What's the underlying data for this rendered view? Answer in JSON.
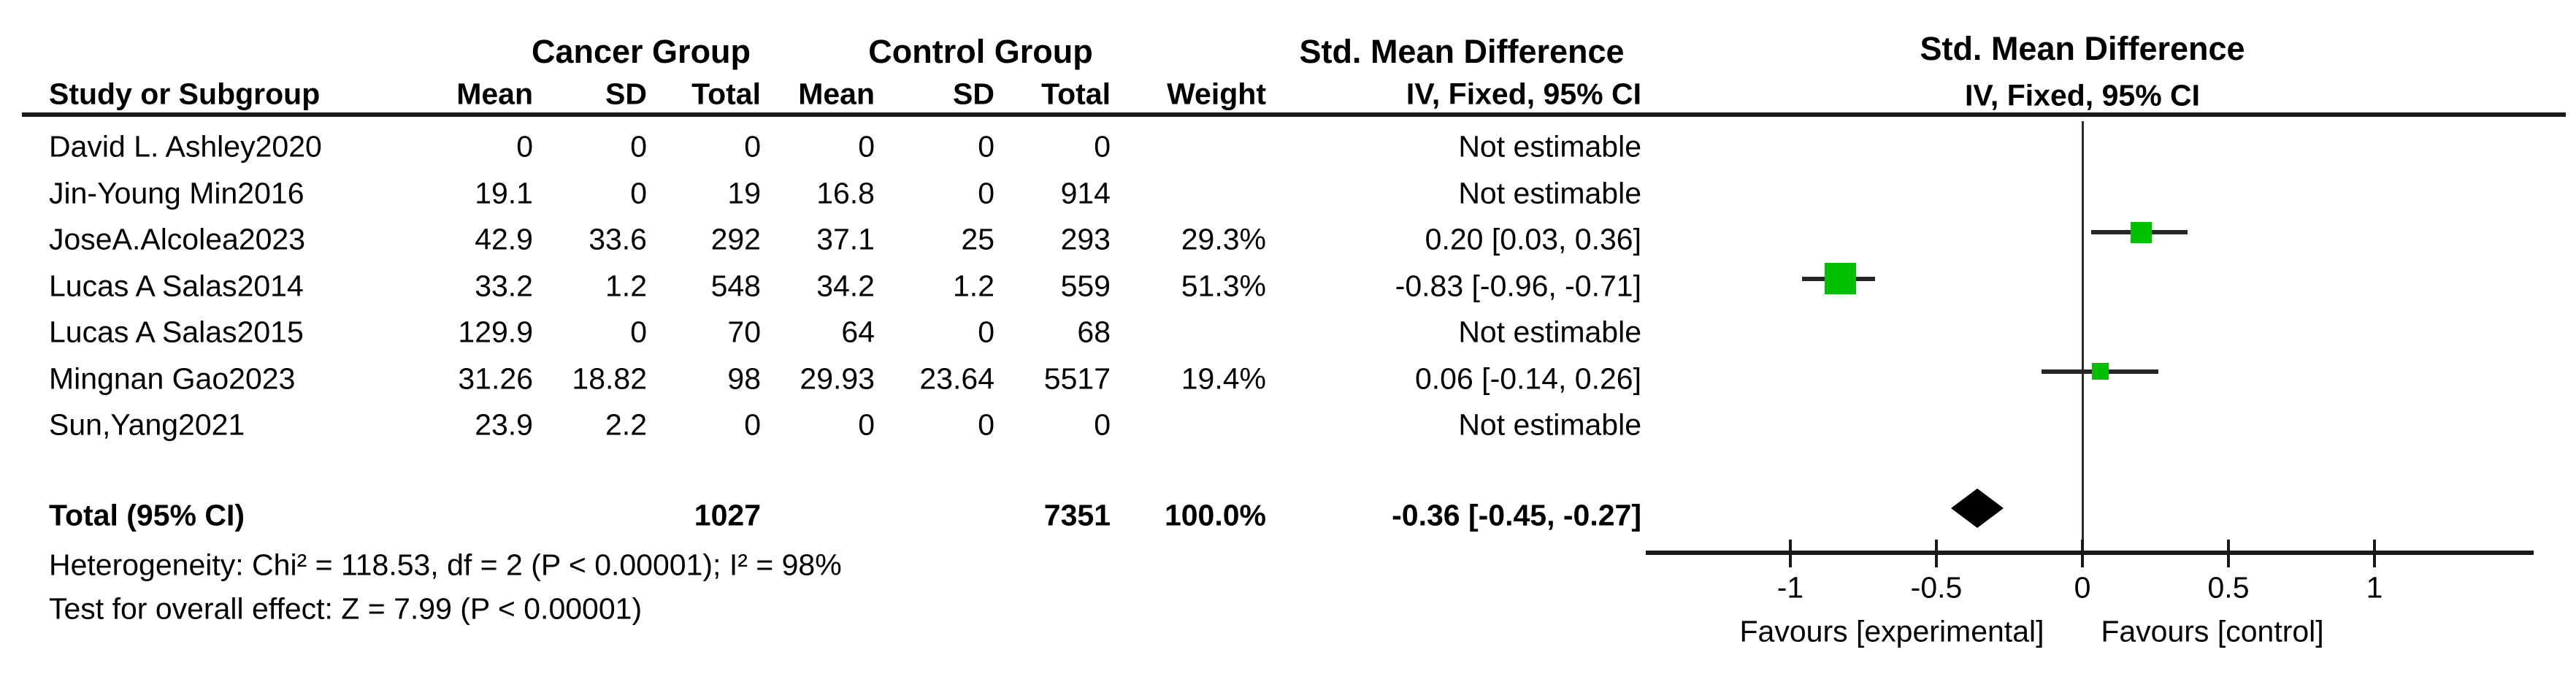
{
  "figure": {
    "group1_header": "Cancer Group",
    "group2_header": "Control Group",
    "effect_header": "Std. Mean Difference",
    "plot_header_line1": "Std. Mean Difference",
    "plot_header_line2": "IV, Fixed, 95% CI",
    "columns": {
      "study": "Study or Subgroup",
      "mean": "Mean",
      "sd": "SD",
      "total": "Total",
      "mean2": "Mean",
      "sd2": "SD",
      "total2": "Total",
      "weight": "Weight",
      "method": "IV, Fixed, 95% CI"
    },
    "rows": [
      {
        "study": "David L. Ashley2020",
        "mean1": "0",
        "sd1": "0",
        "total1": "0",
        "mean2": "0",
        "sd2": "0",
        "total2": "0",
        "weight": "",
        "ci": "Not estimable"
      },
      {
        "study": "Jin-Young Min2016",
        "mean1": "19.1",
        "sd1": "0",
        "total1": "19",
        "mean2": "16.8",
        "sd2": "0",
        "total2": "914",
        "weight": "",
        "ci": "Not estimable"
      },
      {
        "study": "JoseA.Alcolea2023",
        "mean1": "42.9",
        "sd1": "33.6",
        "total1": "292",
        "mean2": "37.1",
        "sd2": "25",
        "total2": "293",
        "weight": "29.3%",
        "ci": "0.20 [0.03, 0.36]"
      },
      {
        "study": "Lucas A Salas2014",
        "mean1": "33.2",
        "sd1": "1.2",
        "total1": "548",
        "mean2": "34.2",
        "sd2": "1.2",
        "total2": "559",
        "weight": "51.3%",
        "ci": "-0.83 [-0.96, -0.71]"
      },
      {
        "study": "Lucas A Salas2015",
        "mean1": "129.9",
        "sd1": "0",
        "total1": "70",
        "mean2": "64",
        "sd2": "0",
        "total2": "68",
        "weight": "",
        "ci": "Not estimable"
      },
      {
        "study": "Mingnan Gao2023",
        "mean1": "31.26",
        "sd1": "18.82",
        "total1": "98",
        "mean2": "29.93",
        "sd2": "23.64",
        "total2": "5517",
        "weight": "19.4%",
        "ci": "0.06 [-0.14, 0.26]"
      },
      {
        "study": "Sun,Yang2021",
        "mean1": "23.9",
        "sd1": "2.2",
        "total1": "0",
        "mean2": "0",
        "sd2": "0",
        "total2": "0",
        "weight": "",
        "ci": "Not estimable"
      }
    ],
    "total_row": {
      "label": "Total (95% CI)",
      "total1": "1027",
      "total2": "7351",
      "weight": "100.0%",
      "ci": "-0.36 [-0.45, -0.27]"
    },
    "heterogeneity": "Heterogeneity: Chi² = 118.53, df = 2 (P < 0.00001); I² = 98%",
    "overall_effect": "Test for overall effect: Z = 7.99 (P < 0.00001)",
    "favours_left": "Favours [experimental]",
    "favours_right": "Favours [control]"
  },
  "chart_data": {
    "type": "scatter",
    "subtype": "forest-plot-meta-analysis",
    "effect_measure": "Std. Mean Difference (IV, Fixed, 95% CI)",
    "grid": false,
    "legend_position": "none",
    "x_axis": {
      "range": [
        -1.5,
        1.55
      ],
      "ticks": [
        -1,
        -0.5,
        0,
        0.5,
        1
      ],
      "tick_labels": [
        "-1",
        "-0.5",
        "0",
        "0.5",
        "1"
      ],
      "label_left": "Favours [experimental]",
      "label_right": "Favours [control]"
    },
    "studies": [
      {
        "name": "David L. Ashley2020",
        "cancer": {
          "mean": 0,
          "sd": 0,
          "total": 0
        },
        "control": {
          "mean": 0,
          "sd": 0,
          "total": 0
        },
        "weight_pct": null,
        "smd": null,
        "ci": null,
        "estimable": false
      },
      {
        "name": "Jin-Young Min2016",
        "cancer": {
          "mean": 19.1,
          "sd": 0,
          "total": 19
        },
        "control": {
          "mean": 16.8,
          "sd": 0,
          "total": 914
        },
        "weight_pct": null,
        "smd": null,
        "ci": null,
        "estimable": false
      },
      {
        "name": "JoseA.Alcolea2023",
        "cancer": {
          "mean": 42.9,
          "sd": 33.6,
          "total": 292
        },
        "control": {
          "mean": 37.1,
          "sd": 25,
          "total": 293
        },
        "weight_pct": 29.3,
        "smd": 0.2,
        "ci": [
          0.03,
          0.36
        ],
        "estimable": true
      },
      {
        "name": "Lucas A Salas2014",
        "cancer": {
          "mean": 33.2,
          "sd": 1.2,
          "total": 548
        },
        "control": {
          "mean": 34.2,
          "sd": 1.2,
          "total": 559
        },
        "weight_pct": 51.3,
        "smd": -0.83,
        "ci": [
          -0.96,
          -0.71
        ],
        "estimable": true
      },
      {
        "name": "Lucas A Salas2015",
        "cancer": {
          "mean": 129.9,
          "sd": 0,
          "total": 70
        },
        "control": {
          "mean": 64,
          "sd": 0,
          "total": 68
        },
        "weight_pct": null,
        "smd": null,
        "ci": null,
        "estimable": false
      },
      {
        "name": "Mingnan Gao2023",
        "cancer": {
          "mean": 31.26,
          "sd": 18.82,
          "total": 98
        },
        "control": {
          "mean": 29.93,
          "sd": 23.64,
          "total": 5517
        },
        "weight_pct": 19.4,
        "smd": 0.06,
        "ci": [
          -0.14,
          0.26
        ],
        "estimable": true
      },
      {
        "name": "Sun,Yang2021",
        "cancer": {
          "mean": 23.9,
          "sd": 2.2,
          "total": 0
        },
        "control": {
          "mean": 0,
          "sd": 0,
          "total": 0
        },
        "weight_pct": null,
        "smd": null,
        "ci": null,
        "estimable": false
      }
    ],
    "total": {
      "label": "Total (95% CI)",
      "cancer_total": 1027,
      "control_total": 7351,
      "weight_pct": 100.0,
      "smd": -0.36,
      "ci": [
        -0.45,
        -0.27
      ]
    },
    "heterogeneity": {
      "chi2": 118.53,
      "df": 2,
      "p": "< 0.00001",
      "i2_pct": 98
    },
    "overall_effect": {
      "z": 7.99,
      "p": "< 0.00001"
    }
  },
  "colors": {
    "marker_green": "#00c000",
    "diamond_black": "#000000",
    "line_dark": "#1a1a1a"
  }
}
